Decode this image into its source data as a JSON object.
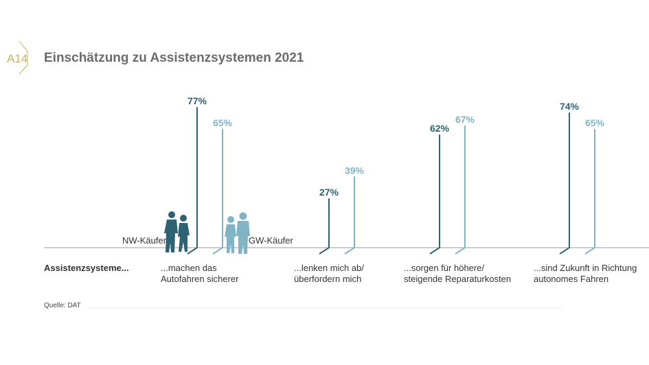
{
  "header": {
    "badge": "A14",
    "title": "Einschätzung zu Assistenzsystemen 2021"
  },
  "row_label": "Assistenzsysteme...",
  "source": "Quelle: DAT",
  "colors": {
    "nw": "#2e6273",
    "gw": "#80b4c5",
    "badge": "#c8b25a"
  },
  "chart_data": {
    "type": "bar",
    "title": "Einschätzung zu Assistenzsystemen 2021",
    "categories": [
      "...machen das Autofahren sicherer",
      "...lenken mich ab/ überfordern mich",
      "...sorgen für höhere/ steigende Reparaturkosten",
      "...sind Zukunft in Richtung autonomes Fahren"
    ],
    "category_lines": [
      [
        "...machen das",
        "Autofahren sicherer"
      ],
      [
        "...lenken mich ab/",
        "überfordern mich"
      ],
      [
        "...sorgen für höhere/",
        "steigende Reparaturkosten"
      ],
      [
        "...sind Zukunft in Richtung",
        "autonomes Fahren"
      ]
    ],
    "series": [
      {
        "name": "NW-Käufer",
        "values": [
          77,
          27,
          62,
          74
        ]
      },
      {
        "name": "GW-Käufer",
        "values": [
          65,
          39,
          67,
          65
        ]
      }
    ],
    "unit": "%",
    "ylim": [
      0,
      100
    ]
  }
}
